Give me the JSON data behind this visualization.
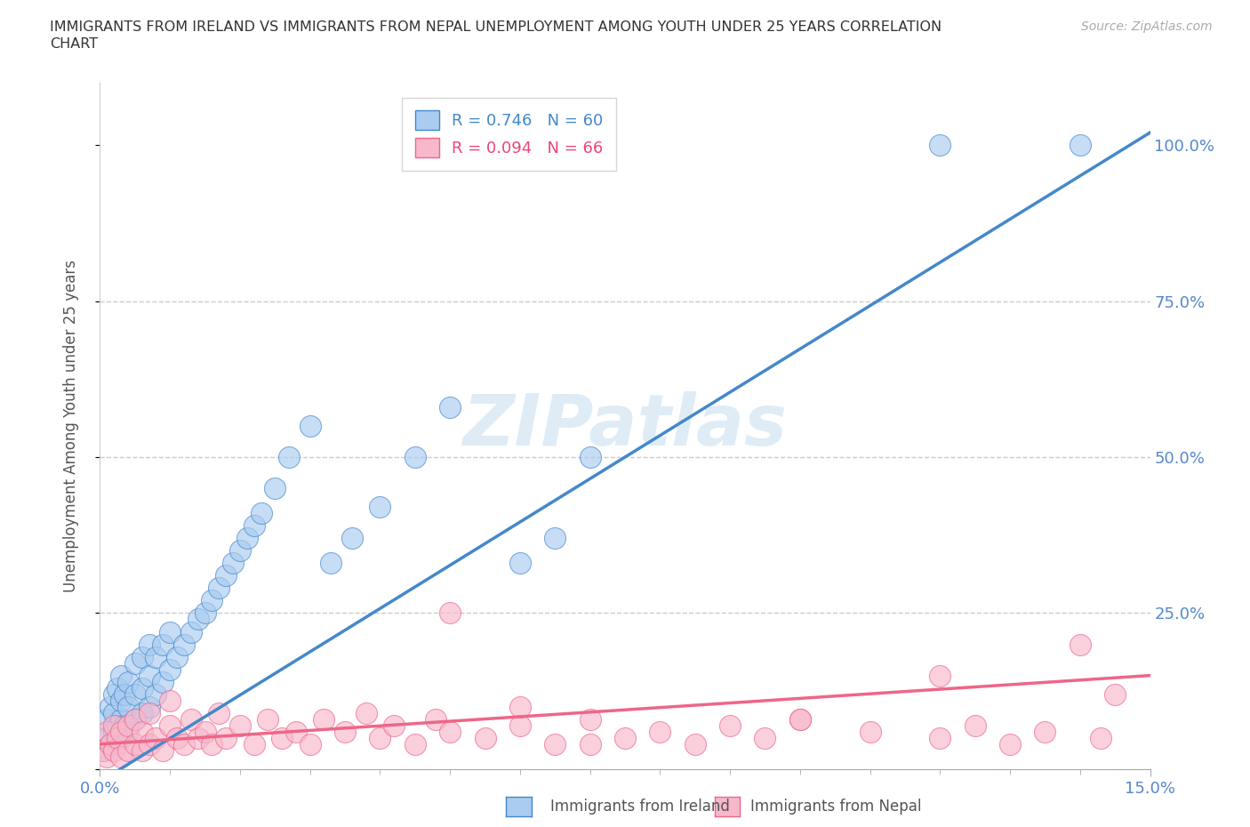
{
  "title_line1": "IMMIGRANTS FROM IRELAND VS IMMIGRANTS FROM NEPAL UNEMPLOYMENT AMONG YOUTH UNDER 25 YEARS CORRELATION",
  "title_line2": "CHART",
  "source": "Source: ZipAtlas.com",
  "ylabel": "Unemployment Among Youth under 25 years",
  "x_min": 0.0,
  "x_max": 0.15,
  "y_min": 0.0,
  "y_max": 1.1,
  "ireland_R": 0.746,
  "ireland_N": 60,
  "nepal_R": 0.094,
  "nepal_N": 66,
  "ireland_color": "#aaccf0",
  "nepal_color": "#f8b8cc",
  "ireland_line_color": "#4488cc",
  "nepal_line_color": "#ee6688",
  "watermark": "ZIPatlas",
  "ireland_trend_x0": 0.0,
  "ireland_trend_y0": -0.02,
  "ireland_trend_x1": 0.15,
  "ireland_trend_y1": 1.02,
  "nepal_trend_x0": 0.0,
  "nepal_trend_y0": 0.04,
  "nepal_trend_x1": 0.15,
  "nepal_trend_y1": 0.15,
  "ireland_scatter_x": [
    0.0005,
    0.001,
    0.001,
    0.0015,
    0.0015,
    0.002,
    0.002,
    0.002,
    0.0025,
    0.0025,
    0.003,
    0.003,
    0.003,
    0.003,
    0.0035,
    0.0035,
    0.004,
    0.004,
    0.004,
    0.005,
    0.005,
    0.005,
    0.006,
    0.006,
    0.006,
    0.007,
    0.007,
    0.007,
    0.008,
    0.008,
    0.009,
    0.009,
    0.01,
    0.01,
    0.011,
    0.012,
    0.013,
    0.014,
    0.015,
    0.016,
    0.017,
    0.018,
    0.019,
    0.02,
    0.021,
    0.022,
    0.023,
    0.025,
    0.027,
    0.03,
    0.033,
    0.036,
    0.04,
    0.045,
    0.05,
    0.06,
    0.065,
    0.07,
    0.12,
    0.14
  ],
  "ireland_scatter_y": [
    0.03,
    0.05,
    0.08,
    0.04,
    0.1,
    0.06,
    0.09,
    0.12,
    0.07,
    0.13,
    0.05,
    0.08,
    0.11,
    0.15,
    0.07,
    0.12,
    0.06,
    0.1,
    0.14,
    0.08,
    0.12,
    0.17,
    0.09,
    0.13,
    0.18,
    0.1,
    0.15,
    0.2,
    0.12,
    0.18,
    0.14,
    0.2,
    0.16,
    0.22,
    0.18,
    0.2,
    0.22,
    0.24,
    0.25,
    0.27,
    0.29,
    0.31,
    0.33,
    0.35,
    0.37,
    0.39,
    0.41,
    0.45,
    0.5,
    0.55,
    0.33,
    0.37,
    0.42,
    0.5,
    0.58,
    0.33,
    0.37,
    0.5,
    1.0,
    1.0
  ],
  "nepal_scatter_x": [
    0.0005,
    0.001,
    0.001,
    0.0015,
    0.002,
    0.002,
    0.0025,
    0.003,
    0.003,
    0.004,
    0.004,
    0.005,
    0.005,
    0.006,
    0.006,
    0.007,
    0.007,
    0.008,
    0.009,
    0.01,
    0.01,
    0.011,
    0.012,
    0.013,
    0.014,
    0.015,
    0.016,
    0.017,
    0.018,
    0.02,
    0.022,
    0.024,
    0.026,
    0.028,
    0.03,
    0.032,
    0.035,
    0.038,
    0.04,
    0.042,
    0.045,
    0.048,
    0.05,
    0.055,
    0.06,
    0.065,
    0.07,
    0.075,
    0.08,
    0.085,
    0.09,
    0.095,
    0.1,
    0.11,
    0.12,
    0.125,
    0.13,
    0.135,
    0.14,
    0.143,
    0.05,
    0.06,
    0.07,
    0.1,
    0.12,
    0.145
  ],
  "nepal_scatter_y": [
    0.03,
    0.02,
    0.06,
    0.04,
    0.03,
    0.07,
    0.05,
    0.02,
    0.06,
    0.03,
    0.07,
    0.04,
    0.08,
    0.03,
    0.06,
    0.04,
    0.09,
    0.05,
    0.03,
    0.07,
    0.11,
    0.05,
    0.04,
    0.08,
    0.05,
    0.06,
    0.04,
    0.09,
    0.05,
    0.07,
    0.04,
    0.08,
    0.05,
    0.06,
    0.04,
    0.08,
    0.06,
    0.09,
    0.05,
    0.07,
    0.04,
    0.08,
    0.06,
    0.05,
    0.07,
    0.04,
    0.08,
    0.05,
    0.06,
    0.04,
    0.07,
    0.05,
    0.08,
    0.06,
    0.05,
    0.07,
    0.04,
    0.06,
    0.2,
    0.05,
    0.25,
    0.1,
    0.04,
    0.08,
    0.15,
    0.12
  ]
}
